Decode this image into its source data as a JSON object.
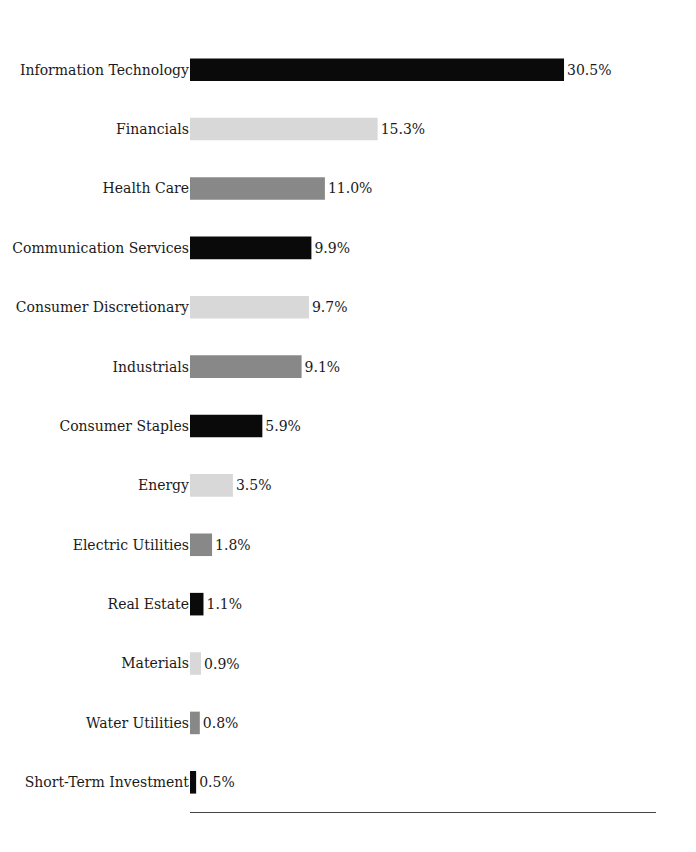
{
  "chart_data": {
    "type": "bar",
    "orientation": "horizontal",
    "categories": [
      "Information Technology",
      "Financials",
      "Health Care",
      "Communication Services",
      "Consumer Discretionary",
      "Industrials",
      "Consumer Staples",
      "Energy",
      "Electric Utilities",
      "Real Estate",
      "Materials",
      "Water Utilities",
      "Short-Term Investment"
    ],
    "values": [
      30.5,
      15.3,
      11.0,
      9.9,
      9.7,
      9.1,
      5.9,
      3.5,
      1.8,
      1.1,
      0.9,
      0.8,
      0.5
    ],
    "value_labels": [
      "30.5%",
      "15.3%",
      "11.0%",
      "9.9%",
      "9.7%",
      "9.1%",
      "5.9%",
      "3.5%",
      "1.8%",
      "1.1%",
      "0.9%",
      "0.8%",
      "0.5%"
    ],
    "colors": [
      "#0a0a0a",
      "#d8d8d8",
      "#888888",
      "#0a0a0a",
      "#d8d8d8",
      "#888888",
      "#0a0a0a",
      "#d8d8d8",
      "#888888",
      "#0a0a0a",
      "#d8d8d8",
      "#888888",
      "#0a0a0a"
    ],
    "xlim": [
      0,
      38
    ],
    "data_labels": true,
    "tick_labels": "y",
    "grid": false
  }
}
